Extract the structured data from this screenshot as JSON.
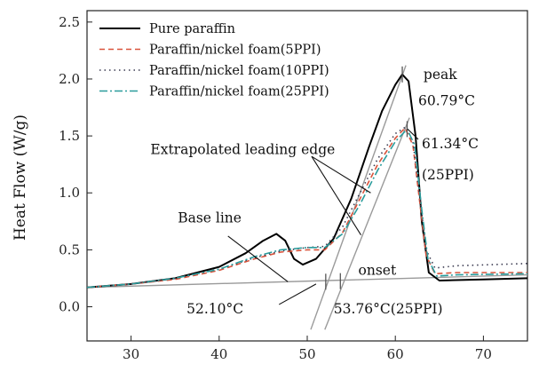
{
  "chart_data": {
    "type": "line",
    "title": "",
    "xlabel": "",
    "ylabel": "Heat Flow (W/g)",
    "xlim": [
      25,
      75
    ],
    "ylim": [
      -0.3,
      2.6
    ],
    "xticks": [
      30,
      40,
      50,
      60,
      70
    ],
    "yticks": [
      0.0,
      0.5,
      1.0,
      1.5,
      2.0,
      2.5
    ],
    "ytick_labels": [
      "0.0",
      "0.5",
      "1.0",
      "1.5",
      "2.0",
      "2.5"
    ],
    "grid": false,
    "legend": "top-left",
    "series": [
      {
        "name": "Pure paraffin",
        "color": "#000000",
        "dash": "solid",
        "points": [
          [
            25,
            0.17
          ],
          [
            30,
            0.2
          ],
          [
            35,
            0.25
          ],
          [
            40,
            0.35
          ],
          [
            43,
            0.47
          ],
          [
            45,
            0.58
          ],
          [
            46.5,
            0.64
          ],
          [
            47.5,
            0.58
          ],
          [
            48.5,
            0.42
          ],
          [
            49.5,
            0.37
          ],
          [
            51,
            0.42
          ],
          [
            53,
            0.6
          ],
          [
            55,
            0.95
          ],
          [
            57,
            1.4
          ],
          [
            58.5,
            1.72
          ],
          [
            60,
            1.95
          ],
          [
            60.79,
            2.04
          ],
          [
            61.5,
            1.98
          ],
          [
            62.3,
            1.5
          ],
          [
            63,
            0.75
          ],
          [
            63.8,
            0.3
          ],
          [
            65,
            0.23
          ],
          [
            70,
            0.24
          ],
          [
            75,
            0.25
          ]
        ]
      },
      {
        "name": "Paraffin/nickel foam(5PPI)",
        "color": "#d9533b",
        "dash": "6,4",
        "points": [
          [
            25,
            0.17
          ],
          [
            30,
            0.2
          ],
          [
            35,
            0.24
          ],
          [
            40,
            0.32
          ],
          [
            44,
            0.42
          ],
          [
            47,
            0.48
          ],
          [
            50,
            0.5
          ],
          [
            52,
            0.5
          ],
          [
            54,
            0.65
          ],
          [
            56,
            0.95
          ],
          [
            58,
            1.25
          ],
          [
            60,
            1.48
          ],
          [
            61.1,
            1.57
          ],
          [
            62,
            1.42
          ],
          [
            62.8,
            0.9
          ],
          [
            63.5,
            0.45
          ],
          [
            64.5,
            0.29
          ],
          [
            67,
            0.3
          ],
          [
            75,
            0.3
          ]
        ]
      },
      {
        "name": "Paraffin/nickel foam(10PPI)",
        "color": "#3a3a50",
        "dash": "1.5,4",
        "points": [
          [
            25,
            0.17
          ],
          [
            30,
            0.2
          ],
          [
            35,
            0.25
          ],
          [
            40,
            0.33
          ],
          [
            44,
            0.43
          ],
          [
            47,
            0.49
          ],
          [
            50,
            0.52
          ],
          [
            52,
            0.53
          ],
          [
            54,
            0.7
          ],
          [
            56,
            1.0
          ],
          [
            58,
            1.3
          ],
          [
            60,
            1.52
          ],
          [
            61.2,
            1.58
          ],
          [
            62,
            1.45
          ],
          [
            62.8,
            0.95
          ],
          [
            63.5,
            0.5
          ],
          [
            64.5,
            0.34
          ],
          [
            67,
            0.36
          ],
          [
            75,
            0.38
          ]
        ]
      },
      {
        "name": "Paraffin/nickel foam(25PPI)",
        "color": "#2a9c9c",
        "dash": "9,3,2,3",
        "points": [
          [
            25,
            0.17
          ],
          [
            30,
            0.2
          ],
          [
            35,
            0.25
          ],
          [
            40,
            0.33
          ],
          [
            44,
            0.44
          ],
          [
            47,
            0.5
          ],
          [
            50,
            0.52
          ],
          [
            52,
            0.52
          ],
          [
            54,
            0.64
          ],
          [
            56,
            0.9
          ],
          [
            58,
            1.2
          ],
          [
            60,
            1.45
          ],
          [
            61.34,
            1.56
          ],
          [
            62.2,
            1.42
          ],
          [
            63,
            0.85
          ],
          [
            63.7,
            0.42
          ],
          [
            64.7,
            0.27
          ],
          [
            67,
            0.28
          ],
          [
            75,
            0.29
          ]
        ]
      }
    ],
    "guide_lines": [
      {
        "role": "base-line",
        "points": [
          [
            25,
            0.17
          ],
          [
            75,
            0.28
          ]
        ]
      },
      {
        "role": "leading-edge-pure",
        "points": [
          [
            50.4,
            -0.2
          ],
          [
            61.2,
            2.12
          ]
        ]
      },
      {
        "role": "leading-edge-25ppi",
        "points": [
          [
            52.0,
            -0.2
          ],
          [
            61.6,
            1.66
          ]
        ]
      }
    ],
    "annotations": [
      {
        "text": "peak",
        "x": 63.2,
        "y": 2.0
      },
      {
        "text": "60.79°C",
        "x": 62.6,
        "y": 1.77
      },
      {
        "text": "61.34°C",
        "x": 63.0,
        "y": 1.39
      },
      {
        "text": "(25PPI)",
        "x": 63.0,
        "y": 1.12
      },
      {
        "text": "Extrapolated leading edge",
        "x": 32.2,
        "y": 1.34
      },
      {
        "text": "Base line",
        "x": 35.3,
        "y": 0.74
      },
      {
        "text": "onset",
        "x": 55.8,
        "y": 0.28
      },
      {
        "text": "52.10°C",
        "x": 36.3,
        "y": -0.06
      },
      {
        "text": "53.76°C(25PPI)",
        "x": 53.0,
        "y": -0.06
      }
    ],
    "annotation_arrows": [
      {
        "from": [
          50.5,
          1.32
        ],
        "to": [
          57.2,
          1.0
        ]
      },
      {
        "from": [
          50.5,
          1.32
        ],
        "to": [
          56.1,
          0.63
        ]
      },
      {
        "from": [
          41.0,
          0.62
        ],
        "to": [
          47.8,
          0.22
        ]
      },
      {
        "from": [
          46.8,
          0.02
        ],
        "to": [
          51.0,
          0.2
        ]
      },
      {
        "from": [
          62.6,
          1.47
        ],
        "to": [
          61.4,
          1.56
        ]
      }
    ],
    "markers": [
      {
        "label": "onset-pure",
        "x": 52.1,
        "y": 0.22
      },
      {
        "label": "onset-25ppi",
        "x": 53.76,
        "y": 0.225
      },
      {
        "label": "peak-pure",
        "x": 60.79,
        "y": 2.04
      },
      {
        "label": "peak-25ppi",
        "x": 61.34,
        "y": 1.56
      }
    ]
  }
}
